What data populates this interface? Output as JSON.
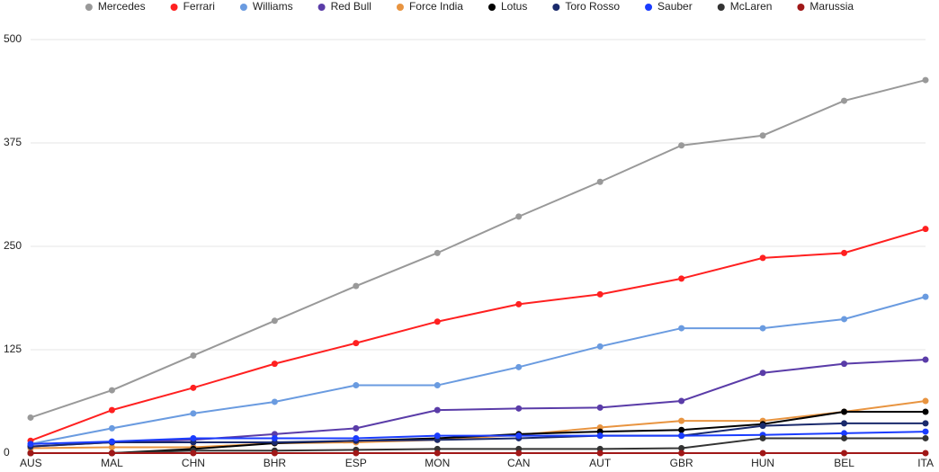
{
  "chart_data": {
    "type": "line",
    "categories": [
      "AUS",
      "MAL",
      "CHN",
      "BHR",
      "ESP",
      "MON",
      "CAN",
      "AUT",
      "GBR",
      "HUN",
      "BEL",
      "ITA"
    ],
    "series": [
      {
        "name": "Mercedes",
        "color": "#999999",
        "values": [
          43,
          76,
          118,
          160,
          202,
          242,
          286,
          328,
          372,
          384,
          426,
          451
        ]
      },
      {
        "name": "Ferrari",
        "color": "#ff2020",
        "values": [
          15,
          52,
          79,
          108,
          133,
          159,
          180,
          192,
          211,
          236,
          242,
          271
        ]
      },
      {
        "name": "Williams",
        "color": "#6a9be0",
        "values": [
          11,
          30,
          48,
          62,
          82,
          82,
          104,
          129,
          151,
          151,
          162,
          189
        ]
      },
      {
        "name": "Red Bull",
        "color": "#5a3ca8",
        "values": [
          8,
          13,
          16,
          23,
          30,
          52,
          54,
          55,
          63,
          97,
          108,
          113
        ]
      },
      {
        "name": "Force India",
        "color": "#e89440",
        "values": [
          6,
          7,
          7,
          12,
          13,
          16,
          22,
          31,
          39,
          39,
          50,
          63
        ]
      },
      {
        "name": "Lotus",
        "color": "#000000",
        "values": [
          0,
          0,
          5,
          12,
          15,
          18,
          23,
          26,
          28,
          35,
          50,
          50
        ]
      },
      {
        "name": "Toro Rosso",
        "color": "#1a2a6c",
        "values": [
          8,
          13,
          13,
          13,
          15,
          16,
          18,
          21,
          21,
          33,
          36,
          36
        ]
      },
      {
        "name": "Sauber",
        "color": "#1a3cff",
        "values": [
          11,
          14,
          18,
          18,
          18,
          21,
          21,
          21,
          21,
          22,
          24,
          26
        ]
      },
      {
        "name": "McLaren",
        "color": "#333333",
        "values": [
          0,
          0,
          3,
          3,
          4,
          5,
          5,
          5,
          6,
          18,
          18,
          18
        ]
      },
      {
        "name": "Marussia",
        "color": "#a01818",
        "values": [
          0,
          0,
          0,
          0,
          0,
          0,
          0,
          0,
          0,
          0,
          0,
          0
        ]
      }
    ],
    "ylim": [
      0,
      500
    ],
    "yticks": [
      0,
      125,
      250,
      375,
      500
    ],
    "grid": true,
    "legend": "top"
  }
}
